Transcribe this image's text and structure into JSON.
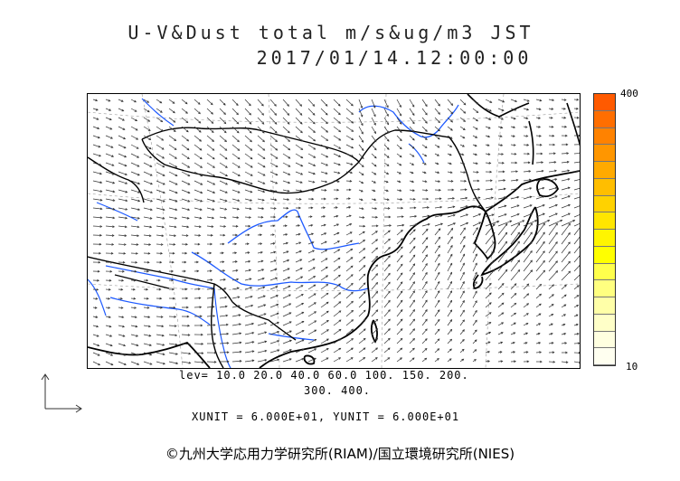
{
  "title": {
    "line1": "U-V&Dust total m/s&ug/m3 JST",
    "line2": "2017/01/14.12:00:00"
  },
  "colorbar": {
    "max_label": "400",
    "min_label": "10",
    "colors": [
      "#ff5a00",
      "#ff6e00",
      "#ff8200",
      "#ff9600",
      "#ffaa00",
      "#ffbe00",
      "#ffd200",
      "#ffe600",
      "#fff500",
      "#ffff00",
      "#ffff4c",
      "#ffff80",
      "#ffffa8",
      "#ffffc8",
      "#ffffe0",
      "#fffff0"
    ]
  },
  "levels": {
    "line1": "lev= 10.0 20.0 40.0 60.0 100. 150. 200.",
    "line2": "300. 400."
  },
  "units": "XUNIT = 6.000E+01, YUNIT = 6.000E+01",
  "credit": "©九州大学応用力学研究所(RIAM)/国立環境研究所(NIES)",
  "colors": {
    "coast": "#000000",
    "river": "#1e5aff",
    "vector": "#333333",
    "grid": "#999999"
  }
}
